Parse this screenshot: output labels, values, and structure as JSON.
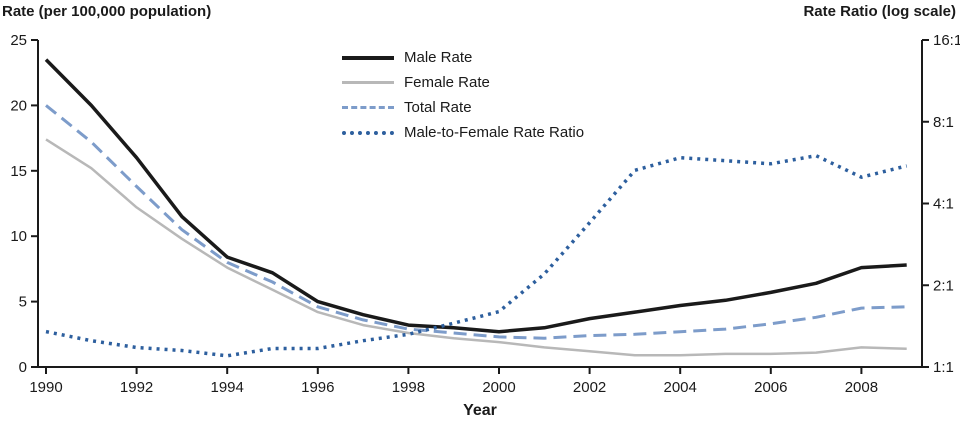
{
  "chart_data": {
    "type": "line",
    "title_left": "Rate (per 100,000 population)",
    "title_right": "Rate Ratio (log scale)",
    "xlabel": "Year",
    "x": [
      1990,
      1991,
      1992,
      1993,
      1994,
      1995,
      1996,
      1997,
      1998,
      1999,
      2000,
      2001,
      2002,
      2003,
      2004,
      2005,
      2006,
      2007,
      2008,
      2009
    ],
    "x_ticks": [
      1990,
      1992,
      1994,
      1996,
      1998,
      2000,
      2002,
      2004,
      2006,
      2008
    ],
    "left_axis": {
      "min": 0,
      "max": 25,
      "ticks": [
        0,
        5,
        10,
        15,
        20,
        25
      ]
    },
    "right_axis": {
      "scale": "log2",
      "min": 1,
      "max": 16,
      "values": [
        1,
        2,
        4,
        8,
        16
      ],
      "labels": [
        "1:1",
        "2:1",
        "4:1",
        "8:1",
        "16:1"
      ]
    },
    "axis_color": "#1a1a1a",
    "text_color": "#1a1a1a",
    "grid": false,
    "legend_position": "top-center-inside",
    "series": [
      {
        "name": "Male Rate",
        "axis": "left",
        "color": "#1a1a1a",
        "dash": "solid",
        "width": 3.5,
        "values": [
          23.5,
          20.0,
          16.0,
          11.5,
          8.4,
          7.2,
          5.0,
          4.0,
          3.2,
          3.0,
          2.7,
          3.0,
          3.7,
          4.2,
          4.7,
          5.1,
          5.7,
          6.4,
          7.6,
          7.8
        ]
      },
      {
        "name": "Female Rate",
        "axis": "left",
        "color": "#b8b8b8",
        "dash": "solid",
        "width": 2.5,
        "values": [
          17.4,
          15.2,
          12.2,
          9.8,
          7.6,
          5.9,
          4.2,
          3.2,
          2.6,
          2.2,
          1.9,
          1.5,
          1.2,
          0.9,
          0.9,
          1.0,
          1.0,
          1.1,
          1.5,
          1.4
        ]
      },
      {
        "name": "Total Rate",
        "axis": "left",
        "color": "#7d9cca",
        "dash": "dashed",
        "width": 3,
        "values": [
          20.0,
          17.2,
          13.8,
          10.5,
          8.0,
          6.5,
          4.6,
          3.6,
          2.9,
          2.6,
          2.3,
          2.2,
          2.4,
          2.5,
          2.7,
          2.9,
          3.3,
          3.8,
          4.5,
          4.6
        ]
      },
      {
        "name": "Male-to-Female Rate Ratio",
        "axis": "right",
        "color": "#2d5f9e",
        "dash": "dotted",
        "width": 3.5,
        "values": [
          1.35,
          1.25,
          1.18,
          1.15,
          1.1,
          1.17,
          1.17,
          1.25,
          1.32,
          1.45,
          1.6,
          2.2,
          3.4,
          5.3,
          5.9,
          5.75,
          5.6,
          6.0,
          5.0,
          5.5
        ]
      }
    ]
  }
}
